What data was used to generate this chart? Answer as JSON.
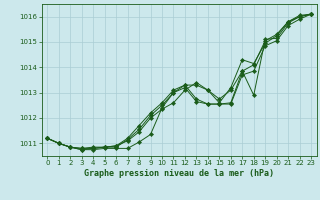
{
  "xlabel": "Graphe pression niveau de la mer (hPa)",
  "bg_color": "#cce8ec",
  "grid_color": "#aacdd4",
  "line_color": "#1a5c1a",
  "marker_color": "#1a5c1a",
  "ylim": [
    1010.5,
    1016.5
  ],
  "yticks": [
    1011,
    1012,
    1013,
    1014,
    1015,
    1016
  ],
  "xlim": [
    -0.5,
    23.5
  ],
  "xticks": [
    0,
    1,
    2,
    3,
    4,
    5,
    6,
    7,
    8,
    9,
    10,
    11,
    12,
    13,
    14,
    15,
    16,
    17,
    18,
    19,
    20,
    21,
    22,
    23
  ],
  "hours": [
    0,
    1,
    2,
    3,
    4,
    5,
    6,
    7,
    8,
    9,
    10,
    11,
    12,
    13,
    14,
    15,
    16,
    17,
    18,
    19,
    20,
    21,
    22,
    23
  ],
  "series": [
    [
      1011.2,
      1011.0,
      1010.85,
      1010.75,
      1010.8,
      1010.85,
      1010.85,
      1011.15,
      1011.55,
      1012.1,
      1012.5,
      1013.0,
      1013.2,
      1012.65,
      1012.55,
      1012.55,
      1012.6,
      1013.85,
      1012.9,
      1015.1,
      1015.15,
      1015.75,
      1016.0,
      1016.1
    ],
    [
      1011.2,
      1011.0,
      1010.85,
      1010.8,
      1010.85,
      1010.85,
      1010.9,
      1011.2,
      1011.7,
      1012.2,
      1012.6,
      1013.1,
      1013.3,
      1013.3,
      1013.1,
      1012.6,
      1013.2,
      1014.3,
      1014.15,
      1014.95,
      1015.25,
      1015.8,
      1016.05,
      1016.1
    ],
    [
      1011.2,
      1011.0,
      1010.85,
      1010.8,
      1010.8,
      1010.85,
      1010.9,
      1011.1,
      1011.45,
      1012.0,
      1012.35,
      1012.6,
      1013.1,
      1013.4,
      1013.1,
      1012.75,
      1013.1,
      1013.85,
      1014.1,
      1015.05,
      1015.3,
      1015.8,
      1016.0,
      1016.1
    ],
    [
      1011.2,
      1011.0,
      1010.85,
      1010.75,
      1010.75,
      1010.8,
      1010.8,
      1010.8,
      1011.05,
      1011.35,
      1012.4,
      1013.0,
      1013.3,
      1012.75,
      1012.55,
      1012.55,
      1012.55,
      1013.7,
      1013.85,
      1014.85,
      1015.05,
      1015.65,
      1015.9,
      1016.1
    ]
  ]
}
